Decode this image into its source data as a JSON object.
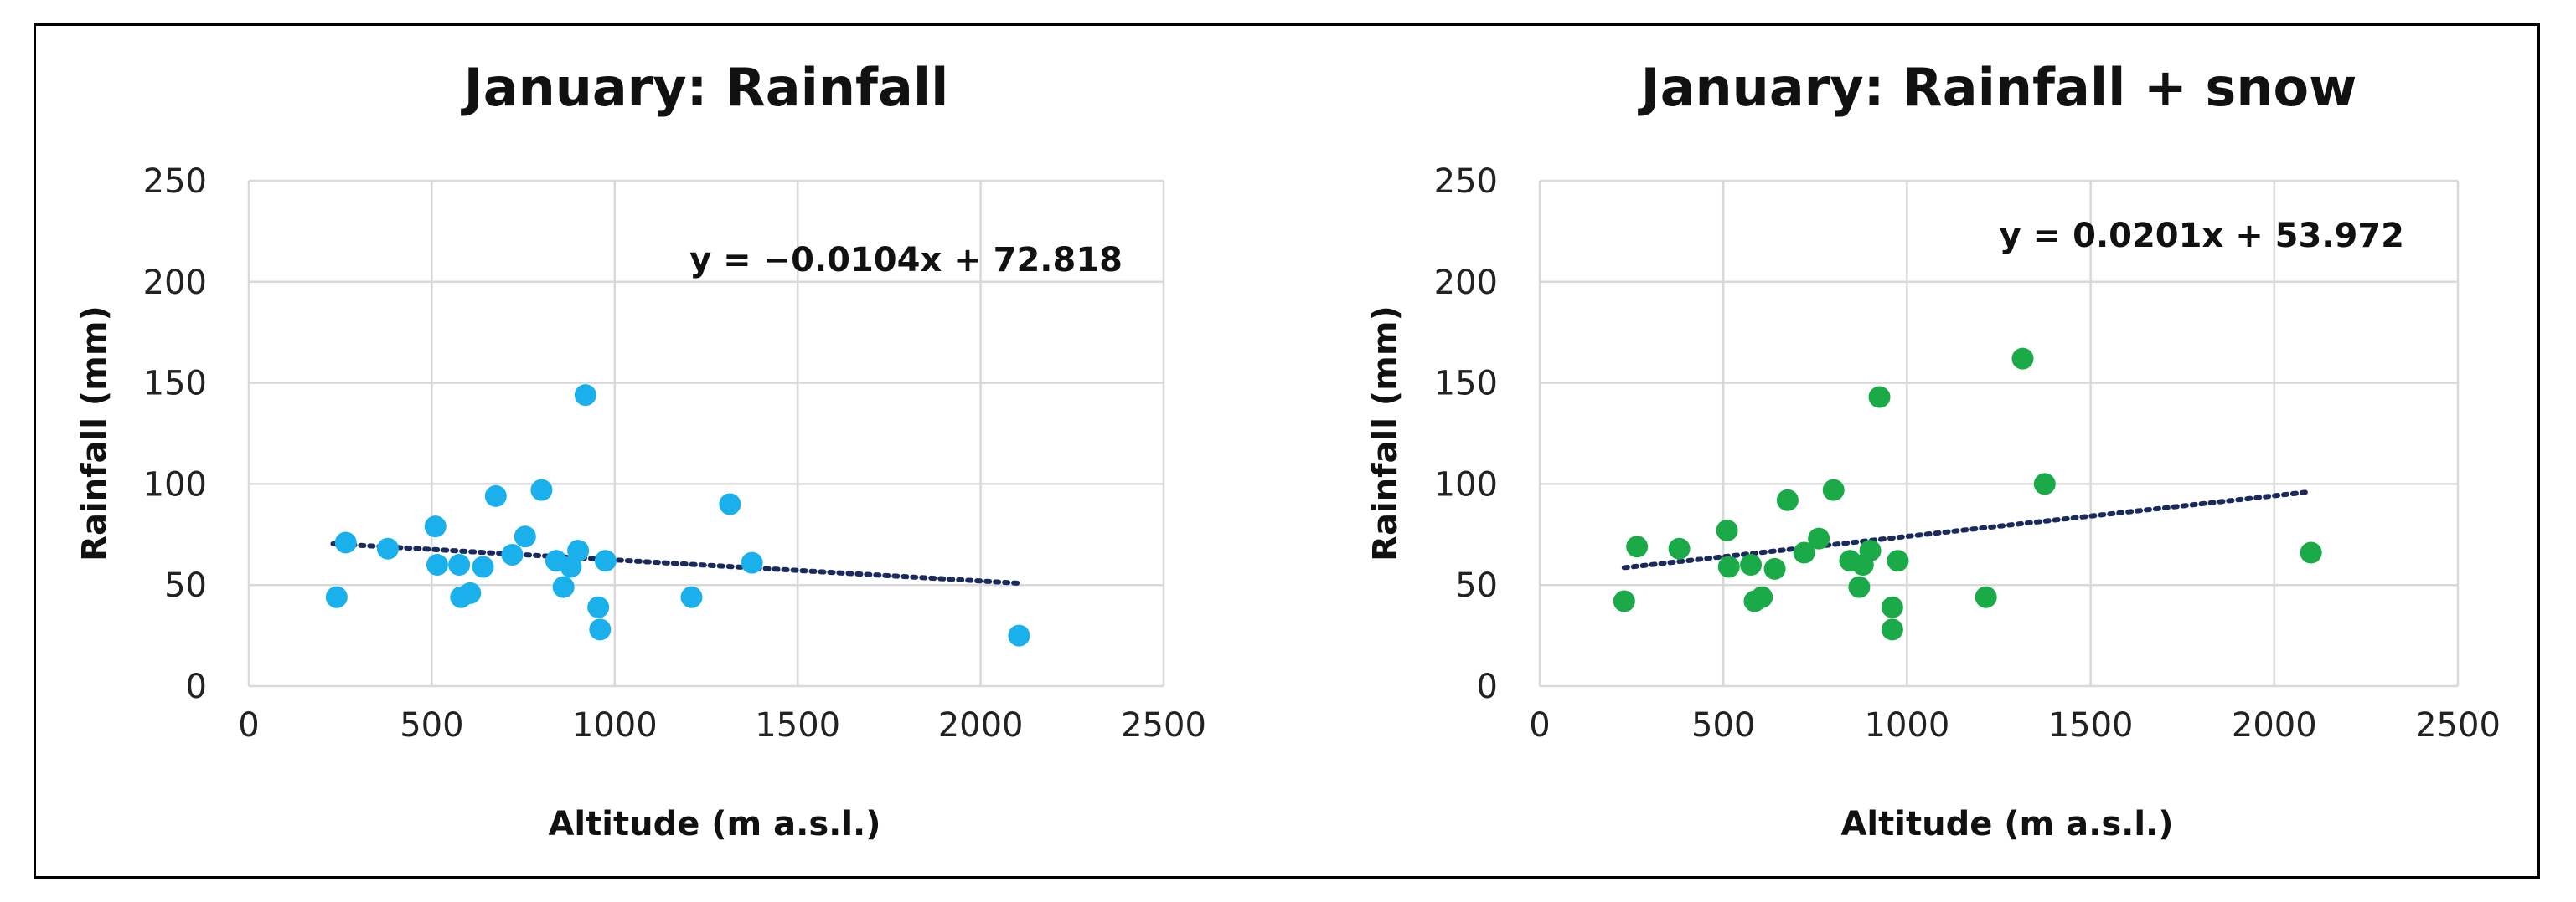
{
  "chart_data": [
    {
      "type": "scatter",
      "title": "January: Rainfall",
      "xlabel": "Altitude (m a.s.l.)",
      "ylabel": "Rainfall (mm)",
      "xlim": [
        0,
        2500
      ],
      "ylim": [
        0,
        250
      ],
      "xticks": [
        "0",
        "500",
        "1000",
        "1500",
        "2000",
        "2500"
      ],
      "yticks": [
        "0",
        "50",
        "100",
        "150",
        "200",
        "250"
      ],
      "color": "#1ab0ec",
      "trendline": {
        "equation": "y = −0.0104x + 72.818",
        "slope": -0.0104,
        "intercept": 72.818,
        "x_range": [
          230,
          2100
        ],
        "color": "#1a2a5c"
      },
      "points": [
        {
          "x": 240,
          "y": 44
        },
        {
          "x": 265,
          "y": 71
        },
        {
          "x": 380,
          "y": 68
        },
        {
          "x": 510,
          "y": 79
        },
        {
          "x": 515,
          "y": 60
        },
        {
          "x": 575,
          "y": 60
        },
        {
          "x": 580,
          "y": 44
        },
        {
          "x": 605,
          "y": 46
        },
        {
          "x": 640,
          "y": 59
        },
        {
          "x": 675,
          "y": 94
        },
        {
          "x": 720,
          "y": 65
        },
        {
          "x": 755,
          "y": 74
        },
        {
          "x": 800,
          "y": 97
        },
        {
          "x": 840,
          "y": 62
        },
        {
          "x": 860,
          "y": 49
        },
        {
          "x": 880,
          "y": 59
        },
        {
          "x": 900,
          "y": 67
        },
        {
          "x": 920,
          "y": 144
        },
        {
          "x": 955,
          "y": 39
        },
        {
          "x": 960,
          "y": 28
        },
        {
          "x": 975,
          "y": 62
        },
        {
          "x": 1210,
          "y": 44
        },
        {
          "x": 1315,
          "y": 90
        },
        {
          "x": 1375,
          "y": 61
        },
        {
          "x": 2105,
          "y": 25
        }
      ]
    },
    {
      "type": "scatter",
      "title": "January: Rainfall + snow",
      "xlabel": "Altitude (m a.s.l.)",
      "ylabel": "Rainfall (mm)",
      "xlim": [
        0,
        2500
      ],
      "ylim": [
        0,
        250
      ],
      "xticks": [
        "0",
        "500",
        "1000",
        "1500",
        "2000",
        "2500"
      ],
      "yticks": [
        "0",
        "50",
        "100",
        "150",
        "200",
        "250"
      ],
      "color": "#1aab48",
      "trendline": {
        "equation": "y = 0.0201x + 53.972",
        "slope": 0.0201,
        "intercept": 53.972,
        "x_range": [
          230,
          2100
        ],
        "color": "#1a2a5c"
      },
      "points": [
        {
          "x": 230,
          "y": 42
        },
        {
          "x": 265,
          "y": 69
        },
        {
          "x": 380,
          "y": 68
        },
        {
          "x": 510,
          "y": 77
        },
        {
          "x": 515,
          "y": 59
        },
        {
          "x": 575,
          "y": 60
        },
        {
          "x": 585,
          "y": 42
        },
        {
          "x": 605,
          "y": 44
        },
        {
          "x": 640,
          "y": 58
        },
        {
          "x": 675,
          "y": 92
        },
        {
          "x": 720,
          "y": 66
        },
        {
          "x": 760,
          "y": 73
        },
        {
          "x": 800,
          "y": 97
        },
        {
          "x": 845,
          "y": 62
        },
        {
          "x": 870,
          "y": 49
        },
        {
          "x": 880,
          "y": 60
        },
        {
          "x": 900,
          "y": 67
        },
        {
          "x": 925,
          "y": 143
        },
        {
          "x": 960,
          "y": 39
        },
        {
          "x": 960,
          "y": 28
        },
        {
          "x": 975,
          "y": 62
        },
        {
          "x": 1215,
          "y": 44
        },
        {
          "x": 1315,
          "y": 162
        },
        {
          "x": 1375,
          "y": 100
        },
        {
          "x": 2100,
          "y": 66
        }
      ]
    }
  ]
}
